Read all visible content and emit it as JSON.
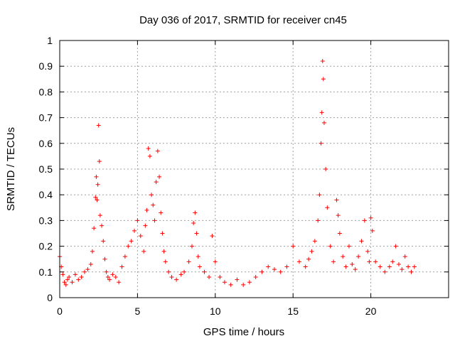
{
  "chart_data": {
    "type": "scatter",
    "title": "Day 036 of 2017, SRMTID for receiver cn45",
    "xlabel": "GPS time / hours",
    "ylabel": "SRMTID / TECUs",
    "xlim": [
      0,
      25
    ],
    "ylim": [
      0,
      1
    ],
    "xticks": [
      0,
      5,
      10,
      15,
      20
    ],
    "xtick_labels": [
      "0",
      "5",
      "10",
      "15",
      "20"
    ],
    "yticks": [
      0,
      0.1,
      0.2,
      0.3,
      0.4,
      0.5,
      0.6,
      0.7,
      0.8,
      0.9,
      1
    ],
    "ytick_labels": [
      "0",
      "0.1",
      "0.2",
      "0.3",
      "0.4",
      "0.5",
      "0.6",
      "0.7",
      "0.8",
      "0.9",
      "1"
    ],
    "grid": true,
    "marker": "+",
    "marker_color": "#ff0000",
    "series": [
      {
        "name": "SRMTID",
        "x": [
          0.0,
          0.1,
          0.2,
          0.3,
          0.4,
          0.5,
          0.6,
          0.8,
          1.0,
          1.2,
          1.4,
          1.6,
          1.8,
          2.0,
          2.1,
          2.2,
          2.3,
          2.35,
          2.4,
          2.45,
          2.5,
          2.55,
          2.6,
          2.7,
          2.8,
          2.9,
          3.0,
          3.1,
          3.2,
          3.4,
          3.6,
          3.8,
          4.0,
          4.2,
          4.4,
          4.6,
          4.8,
          5.0,
          5.2,
          5.4,
          5.5,
          5.6,
          5.7,
          5.8,
          5.9,
          6.0,
          6.1,
          6.2,
          6.3,
          6.4,
          6.5,
          6.6,
          6.7,
          6.8,
          7.0,
          7.2,
          7.5,
          7.8,
          8.0,
          8.3,
          8.5,
          8.6,
          8.7,
          8.8,
          8.9,
          9.0,
          9.3,
          9.6,
          9.8,
          10.0,
          10.3,
          10.6,
          11.0,
          11.4,
          11.8,
          12.2,
          12.6,
          13.0,
          13.4,
          13.8,
          14.2,
          14.6,
          15.0,
          15.4,
          15.8,
          16.0,
          16.2,
          16.4,
          16.6,
          16.7,
          16.8,
          16.85,
          16.9,
          16.95,
          17.0,
          17.1,
          17.2,
          17.4,
          17.6,
          17.8,
          17.9,
          18.0,
          18.2,
          18.4,
          18.6,
          18.8,
          19.0,
          19.2,
          19.4,
          19.6,
          19.8,
          19.9,
          20.0,
          20.1,
          20.3,
          20.6,
          20.9,
          21.2,
          21.4,
          21.6,
          21.8,
          22.0,
          22.2,
          22.4,
          22.6,
          22.8
        ],
        "y": [
          0.16,
          0.12,
          0.09,
          0.06,
          0.05,
          0.07,
          0.08,
          0.06,
          0.09,
          0.07,
          0.08,
          0.1,
          0.11,
          0.13,
          0.18,
          0.27,
          0.39,
          0.47,
          0.38,
          0.44,
          0.67,
          0.53,
          0.32,
          0.28,
          0.22,
          0.15,
          0.1,
          0.08,
          0.07,
          0.09,
          0.08,
          0.06,
          0.12,
          0.16,
          0.2,
          0.22,
          0.26,
          0.3,
          0.24,
          0.18,
          0.28,
          0.34,
          0.58,
          0.55,
          0.4,
          0.36,
          0.3,
          0.45,
          0.57,
          0.47,
          0.33,
          0.25,
          0.18,
          0.14,
          0.1,
          0.08,
          0.07,
          0.09,
          0.1,
          0.14,
          0.2,
          0.29,
          0.33,
          0.25,
          0.16,
          0.12,
          0.1,
          0.08,
          0.24,
          0.14,
          0.08,
          0.06,
          0.05,
          0.07,
          0.05,
          0.06,
          0.08,
          0.1,
          0.12,
          0.11,
          0.1,
          0.12,
          0.2,
          0.14,
          0.12,
          0.15,
          0.18,
          0.22,
          0.3,
          0.4,
          0.6,
          0.72,
          0.92,
          0.85,
          0.68,
          0.5,
          0.35,
          0.2,
          0.14,
          0.38,
          0.32,
          0.25,
          0.16,
          0.12,
          0.2,
          0.13,
          0.11,
          0.16,
          0.22,
          0.3,
          0.18,
          0.14,
          0.31,
          0.26,
          0.14,
          0.12,
          0.1,
          0.12,
          0.14,
          0.2,
          0.13,
          0.11,
          0.16,
          0.12,
          0.1,
          0.12
        ]
      }
    ]
  }
}
